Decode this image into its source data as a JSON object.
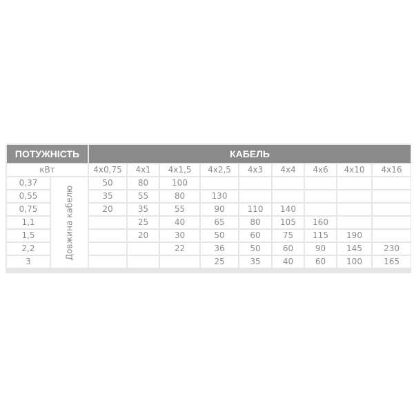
{
  "header": {
    "power": "ПОТУЖНІСТЬ",
    "cable": "КАБЕЛЬ"
  },
  "unit": "кВт",
  "vertical_label": "Довжина кабелю",
  "columns": [
    "4x0,75",
    "4x1",
    "4x1,5",
    "4x2,5",
    "4x3",
    "4x4",
    "4x6",
    "4x10",
    "4x16"
  ],
  "rows": [
    {
      "power": "0,37",
      "values": [
        "50",
        "80",
        "100",
        "",
        "",
        "",
        "",
        "",
        ""
      ]
    },
    {
      "power": "0,55",
      "values": [
        "35",
        "55",
        "80",
        "130",
        "",
        "",
        "",
        "",
        ""
      ]
    },
    {
      "power": "0,75",
      "values": [
        "20",
        "35",
        "55",
        "90",
        "110",
        "140",
        "",
        "",
        ""
      ]
    },
    {
      "power": "1,1",
      "values": [
        "",
        "25",
        "40",
        "65",
        "80",
        "105",
        "160",
        "",
        ""
      ]
    },
    {
      "power": "1,5",
      "values": [
        "",
        "20",
        "30",
        "50",
        "60",
        "75",
        "115",
        "190",
        ""
      ]
    },
    {
      "power": "2,2",
      "values": [
        "",
        "",
        "22",
        "36",
        "50",
        "60",
        "90",
        "145",
        "230"
      ]
    },
    {
      "power": "3",
      "values": [
        "",
        "",
        "",
        "25",
        "35",
        "40",
        "60",
        "100",
        "165"
      ]
    }
  ]
}
